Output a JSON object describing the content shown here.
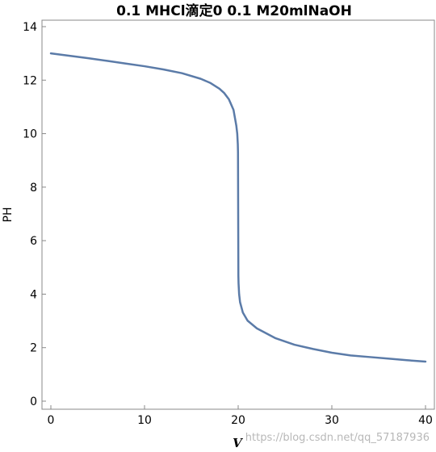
{
  "chart_data": {
    "type": "line",
    "title": "0.1 MHCl滴定0 0.1 M20mlNaOH",
    "xlabel": "V",
    "ylabel": "PH",
    "xlim": [
      0,
      40
    ],
    "ylim": [
      0,
      14
    ],
    "x_ticks": [
      "0",
      "10",
      "20",
      "30",
      "40"
    ],
    "y_ticks": [
      "0",
      "2",
      "4",
      "6",
      "8",
      "10",
      "12",
      "14"
    ],
    "grid": false,
    "line_color": "#5b7ba8",
    "series": [
      {
        "x": [
          0,
          2,
          4,
          6,
          8,
          10,
          12,
          14,
          16,
          17,
          18,
          18.5,
          19,
          19.5,
          19.8,
          19.9,
          19.96,
          19.98,
          20,
          20.02,
          20.04,
          20.1,
          20.2,
          20.5,
          21,
          22,
          24,
          26,
          28,
          30,
          32,
          34,
          36,
          38,
          40
        ],
        "y": [
          13.0,
          12.91,
          12.82,
          12.72,
          12.62,
          12.52,
          12.4,
          12.26,
          12.05,
          11.9,
          11.68,
          11.52,
          11.29,
          10.89,
          10.3,
          10.0,
          9.6,
          9.3,
          7.0,
          4.7,
          4.4,
          4.0,
          3.7,
          3.31,
          3.01,
          2.72,
          2.35,
          2.11,
          1.95,
          1.81,
          1.71,
          1.65,
          1.59,
          1.53,
          1.48
        ]
      }
    ]
  },
  "watermark": "https://blog.csdn.net/qq_57187936"
}
